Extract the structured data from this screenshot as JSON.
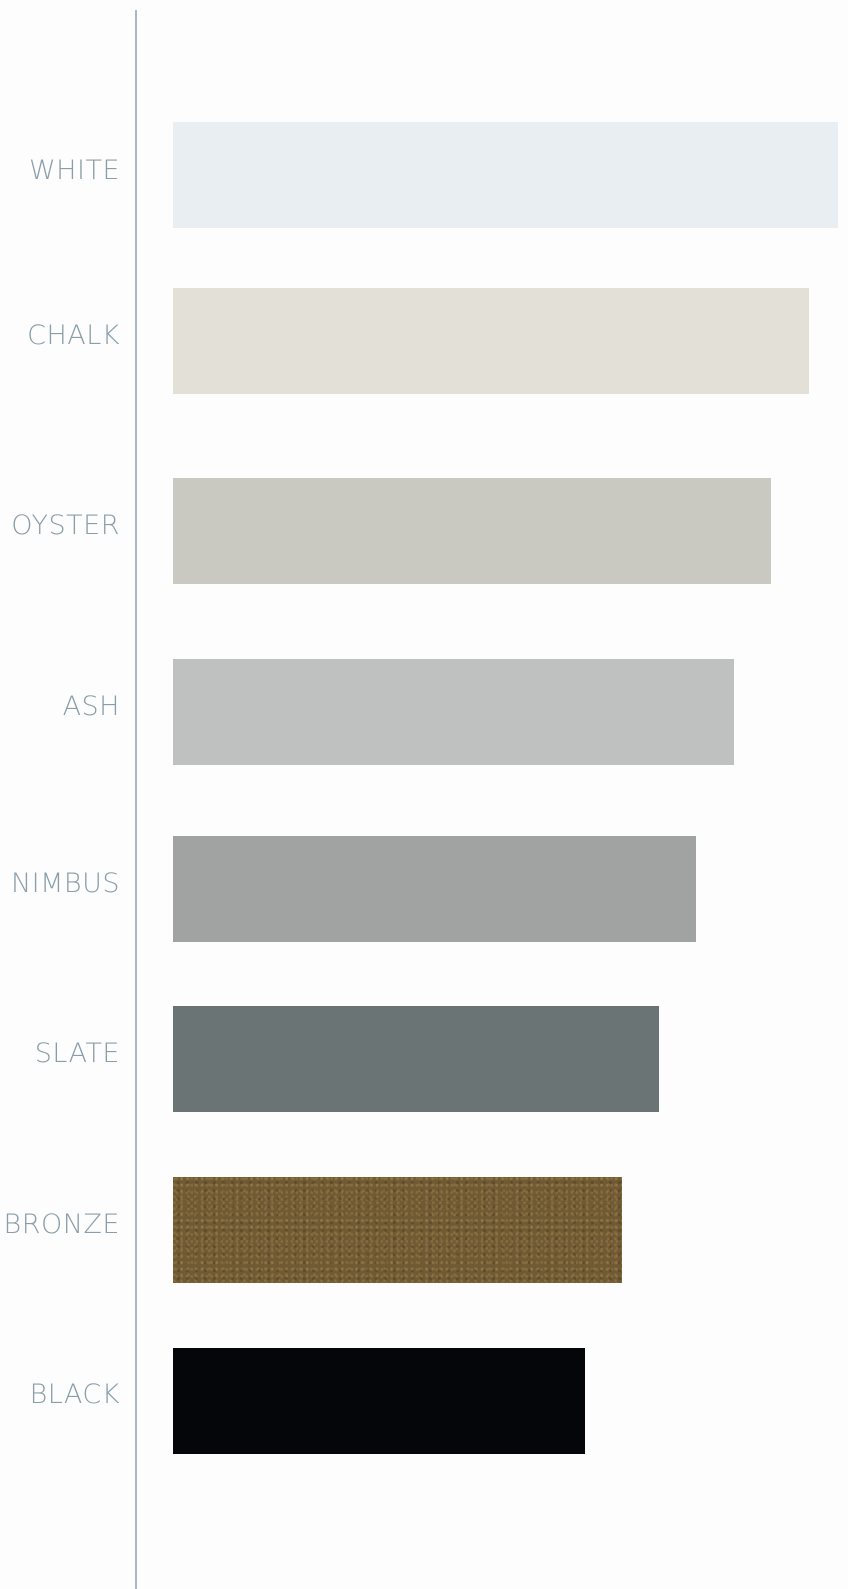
{
  "swatches": [
    {
      "id": "white",
      "label": "WHITE",
      "color": "#e8eef1"
    },
    {
      "id": "chalk",
      "label": "CHALK",
      "color": "#e3e0d8"
    },
    {
      "id": "oyster",
      "label": "OYSTER",
      "color": "#c9c8c1"
    },
    {
      "id": "ash",
      "label": "ASH",
      "color": "#bec1bf"
    },
    {
      "id": "nimbus",
      "label": "NIMBUS",
      "color": "#a0a3a2"
    },
    {
      "id": "slate",
      "label": "SLATE",
      "color": "#6a7474"
    },
    {
      "id": "bronze",
      "label": "BRONZE",
      "color": "#6f5a35"
    },
    {
      "id": "black",
      "label": "BLACK",
      "color": "#05060a"
    }
  ],
  "colors": {
    "label_text": "#8a9eaa",
    "divider": "#a9b9c8",
    "background": "#fdfdfd"
  }
}
